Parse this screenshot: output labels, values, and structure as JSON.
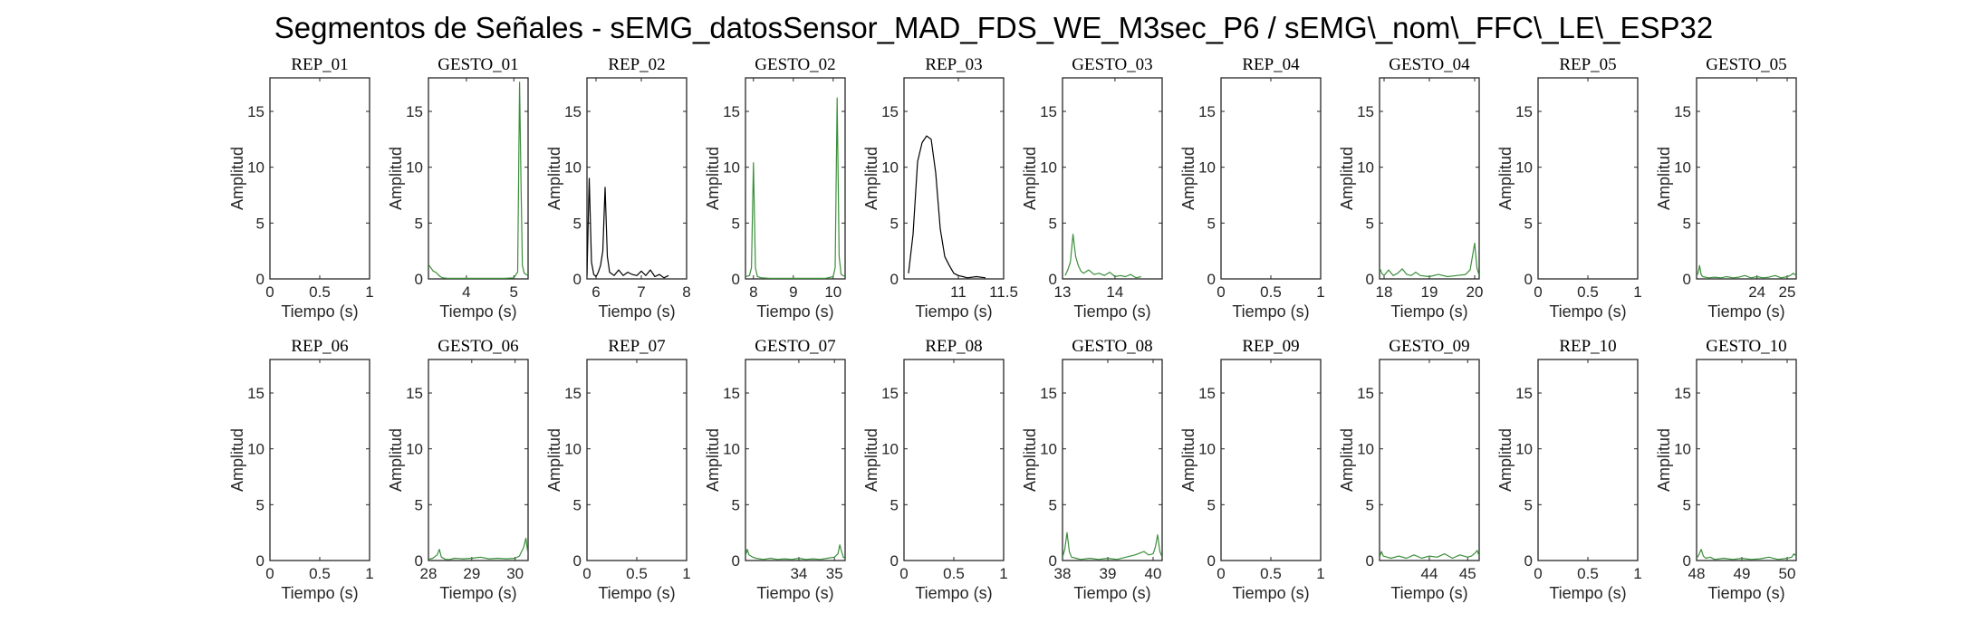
{
  "figure": {
    "title": "Segmentos de Señales - sEMG_datosSensor_MAD_FDS_WE_M3sec_P6 / sEMG\\_nom\\_FFC\\_LE\\_ESP32"
  },
  "colors": {
    "rep_line": "#000000",
    "gesto_line": "#3a8f3a",
    "frame": "#262626"
  },
  "chart_data": [
    {
      "type": "line",
      "title": "REP_01",
      "xlabel": "Tiempo (s)",
      "ylabel": "Amplitud",
      "xlim": [
        0,
        1
      ],
      "ylim": [
        0,
        18
      ],
      "xticks": [
        0,
        0.5,
        1
      ],
      "xtick_labels": [
        "0",
        "0.5",
        "1"
      ],
      "yticks": [
        0,
        5,
        10,
        15
      ],
      "ytick_labels": [
        "0",
        "5",
        "10",
        "15"
      ],
      "color": "#000000",
      "x": [],
      "y": []
    },
    {
      "type": "line",
      "title": "GESTO_01",
      "xlabel": "Tiempo (s)",
      "ylabel": "Amplitud",
      "xlim": [
        3.2,
        5.3
      ],
      "ylim": [
        0,
        18
      ],
      "xticks": [
        4,
        5
      ],
      "xtick_labels": [
        "4",
        "5"
      ],
      "yticks": [
        0,
        5,
        10,
        15
      ],
      "ytick_labels": [
        "0",
        "5",
        "10",
        "15"
      ],
      "color": "#3a8f3a",
      "x": [
        3.2,
        3.25,
        3.3,
        3.35,
        3.4,
        3.45,
        3.5,
        3.6,
        3.8,
        4.0,
        4.2,
        4.4,
        4.6,
        4.8,
        5.0,
        5.08,
        5.12,
        5.15,
        5.18,
        5.22,
        5.26,
        5.3
      ],
      "y": [
        1.3,
        1.0,
        0.7,
        0.6,
        0.4,
        0.2,
        0.1,
        0.05,
        0.05,
        0.05,
        0.05,
        0.05,
        0.05,
        0.05,
        0.1,
        0.6,
        17.6,
        9.0,
        1.2,
        0.5,
        0.4,
        0.3
      ]
    },
    {
      "type": "line",
      "title": "REP_02",
      "xlabel": "Tiempo (s)",
      "ylabel": "Amplitud",
      "xlim": [
        5.8,
        8
      ],
      "ylim": [
        0,
        18
      ],
      "xticks": [
        6,
        7,
        8
      ],
      "xtick_labels": [
        "6",
        "7",
        "8"
      ],
      "yticks": [
        0,
        5,
        10,
        15
      ],
      "ytick_labels": [
        "0",
        "5",
        "10",
        "15"
      ],
      "color": "#000000",
      "x": [
        5.8,
        5.85,
        5.9,
        5.95,
        6.0,
        6.05,
        6.1,
        6.15,
        6.2,
        6.25,
        6.3,
        6.4,
        6.5,
        6.6,
        6.7,
        6.8,
        6.9,
        7.0,
        7.1,
        7.2,
        7.3,
        7.4,
        7.5,
        7.6
      ],
      "y": [
        0.3,
        9.0,
        1.5,
        0.4,
        0.2,
        0.6,
        1.2,
        2.5,
        8.2,
        2.0,
        0.6,
        0.3,
        0.8,
        0.3,
        0.6,
        0.4,
        0.3,
        0.7,
        0.3,
        0.8,
        0.2,
        0.4,
        0.1,
        0.3
      ]
    },
    {
      "type": "line",
      "title": "GESTO_02",
      "xlabel": "Tiempo (s)",
      "ylabel": "Amplitud",
      "xlim": [
        7.8,
        10.3
      ],
      "ylim": [
        0,
        18
      ],
      "xticks": [
        8,
        9,
        10
      ],
      "xtick_labels": [
        "8",
        "9",
        "10"
      ],
      "yticks": [
        0,
        5,
        10,
        15
      ],
      "ytick_labels": [
        "0",
        "5",
        "10",
        "15"
      ],
      "color": "#3a8f3a",
      "x": [
        7.8,
        7.9,
        7.95,
        8.0,
        8.05,
        8.1,
        8.2,
        8.4,
        8.6,
        8.8,
        9.0,
        9.2,
        9.4,
        9.6,
        9.8,
        10.0,
        10.05,
        10.1,
        10.15,
        10.2,
        10.3
      ],
      "y": [
        0.2,
        0.3,
        1.0,
        10.4,
        1.0,
        0.2,
        0.1,
        0.05,
        0.05,
        0.05,
        0.05,
        0.05,
        0.05,
        0.05,
        0.05,
        0.2,
        1.0,
        16.2,
        2.0,
        0.4,
        0.2
      ]
    },
    {
      "type": "line",
      "title": "REP_03",
      "xlabel": "Tiempo (s)",
      "ylabel": "Amplitud",
      "xlim": [
        10.4,
        11.5
      ],
      "ylim": [
        0,
        18
      ],
      "xticks": [
        11,
        11.5
      ],
      "xtick_labels": [
        "11",
        "11.5"
      ],
      "yticks": [
        0,
        5,
        10,
        15
      ],
      "ytick_labels": [
        "0",
        "5",
        "10",
        "15"
      ],
      "color": "#000000",
      "x": [
        10.45,
        10.5,
        10.55,
        10.6,
        10.65,
        10.7,
        10.75,
        10.8,
        10.85,
        10.9,
        10.95,
        11.0,
        11.05,
        11.1,
        11.2,
        11.3
      ],
      "y": [
        0.5,
        4.0,
        10.5,
        12.2,
        12.8,
        12.5,
        9.5,
        4.5,
        2.0,
        1.2,
        0.5,
        0.3,
        0.2,
        0.1,
        0.2,
        0.1
      ]
    },
    {
      "type": "line",
      "title": "GESTO_03",
      "xlabel": "Tiempo (s)",
      "ylabel": "Amplitud",
      "xlim": [
        13,
        14.9
      ],
      "ylim": [
        0,
        18
      ],
      "xticks": [
        13,
        14
      ],
      "xtick_labels": [
        "13",
        "14"
      ],
      "yticks": [
        0,
        5,
        10,
        15
      ],
      "ytick_labels": [
        "0",
        "5",
        "10",
        "15"
      ],
      "color": "#3a8f3a",
      "x": [
        13.05,
        13.1,
        13.15,
        13.2,
        13.25,
        13.3,
        13.35,
        13.4,
        13.5,
        13.6,
        13.7,
        13.8,
        13.9,
        14.0,
        14.1,
        14.2,
        14.3,
        14.4,
        14.5
      ],
      "y": [
        0.3,
        0.8,
        1.5,
        4.0,
        2.0,
        1.2,
        0.7,
        0.5,
        0.8,
        0.4,
        0.5,
        0.3,
        0.6,
        0.2,
        0.3,
        0.2,
        0.4,
        0.1,
        0.2
      ]
    },
    {
      "type": "line",
      "title": "REP_04",
      "xlabel": "Tiempo (s)",
      "ylabel": "Amplitud",
      "xlim": [
        0,
        1
      ],
      "ylim": [
        0,
        18
      ],
      "xticks": [
        0,
        0.5,
        1
      ],
      "xtick_labels": [
        "0",
        "0.5",
        "1"
      ],
      "yticks": [
        0,
        5,
        10,
        15
      ],
      "ytick_labels": [
        "0",
        "5",
        "10",
        "15"
      ],
      "color": "#000000",
      "x": [],
      "y": []
    },
    {
      "type": "line",
      "title": "GESTO_04",
      "xlabel": "Tiempo (s)",
      "ylabel": "Amplitud",
      "xlim": [
        17.9,
        20.1
      ],
      "ylim": [
        0,
        18
      ],
      "xticks": [
        18,
        19,
        20
      ],
      "xtick_labels": [
        "18",
        "19",
        "20"
      ],
      "yticks": [
        0,
        5,
        10,
        15
      ],
      "ytick_labels": [
        "0",
        "5",
        "10",
        "15"
      ],
      "color": "#3a8f3a",
      "x": [
        17.9,
        17.95,
        18.0,
        18.1,
        18.2,
        18.3,
        18.4,
        18.5,
        18.6,
        18.7,
        18.8,
        19.0,
        19.2,
        19.4,
        19.6,
        19.8,
        19.9,
        19.95,
        20.0,
        20.05,
        20.1
      ],
      "y": [
        1.0,
        0.5,
        0.3,
        0.8,
        0.3,
        0.5,
        0.9,
        0.4,
        0.3,
        0.6,
        0.3,
        0.2,
        0.4,
        0.2,
        0.3,
        0.4,
        0.8,
        2.0,
        3.2,
        1.0,
        0.3
      ]
    },
    {
      "type": "line",
      "title": "REP_05",
      "xlabel": "Tiempo (s)",
      "ylabel": "Amplitud",
      "xlim": [
        0,
        1
      ],
      "ylim": [
        0,
        18
      ],
      "xticks": [
        0,
        0.5,
        1
      ],
      "xtick_labels": [
        "0",
        "0.5",
        "1"
      ],
      "yticks": [
        0,
        5,
        10,
        15
      ],
      "ytick_labels": [
        "0",
        "5",
        "10",
        "15"
      ],
      "color": "#000000",
      "x": [],
      "y": []
    },
    {
      "type": "line",
      "title": "GESTO_05",
      "xlabel": "Tiempo (s)",
      "ylabel": "Amplitud",
      "xlim": [
        22,
        25.3
      ],
      "ylim": [
        0,
        18
      ],
      "xticks": [
        24,
        25
      ],
      "xtick_labels": [
        "24",
        "25"
      ],
      "yticks": [
        0,
        5,
        10,
        15
      ],
      "ytick_labels": [
        "0",
        "5",
        "10",
        "15"
      ],
      "color": "#3a8f3a",
      "x": [
        22.0,
        22.05,
        22.1,
        22.15,
        22.2,
        22.4,
        22.6,
        22.8,
        23.0,
        23.2,
        23.4,
        23.6,
        23.8,
        24.0,
        24.2,
        24.4,
        24.6,
        24.8,
        25.0,
        25.1,
        25.2,
        25.3
      ],
      "y": [
        0.3,
        0.5,
        1.2,
        0.4,
        0.2,
        0.1,
        0.15,
        0.1,
        0.2,
        0.1,
        0.15,
        0.3,
        0.1,
        0.2,
        0.1,
        0.15,
        0.3,
        0.1,
        0.2,
        0.3,
        0.5,
        0.3
      ]
    },
    {
      "type": "line",
      "title": "REP_06",
      "xlabel": "Tiempo (s)",
      "ylabel": "Amplitud",
      "xlim": [
        0,
        1
      ],
      "ylim": [
        0,
        18
      ],
      "xticks": [
        0,
        0.5,
        1
      ],
      "xtick_labels": [
        "0",
        "0.5",
        "1"
      ],
      "yticks": [
        0,
        5,
        10,
        15
      ],
      "ytick_labels": [
        "0",
        "5",
        "10",
        "15"
      ],
      "color": "#000000",
      "x": [],
      "y": []
    },
    {
      "type": "line",
      "title": "GESTO_06",
      "xlabel": "Tiempo (s)",
      "ylabel": "Amplitud",
      "xlim": [
        28,
        30.3
      ],
      "ylim": [
        0,
        18
      ],
      "xticks": [
        28,
        29,
        30
      ],
      "xtick_labels": [
        "28",
        "29",
        "30"
      ],
      "yticks": [
        0,
        5,
        10,
        15
      ],
      "ytick_labels": [
        "0",
        "5",
        "10",
        "15"
      ],
      "color": "#3a8f3a",
      "x": [
        28.0,
        28.1,
        28.2,
        28.25,
        28.3,
        28.4,
        28.5,
        28.6,
        28.8,
        29.0,
        29.2,
        29.4,
        29.6,
        29.8,
        30.0,
        30.1,
        30.2,
        30.25,
        30.3
      ],
      "y": [
        0.1,
        0.2,
        0.5,
        1.0,
        0.3,
        0.1,
        0.1,
        0.2,
        0.15,
        0.2,
        0.3,
        0.15,
        0.2,
        0.15,
        0.2,
        0.4,
        1.2,
        2.0,
        0.5
      ]
    },
    {
      "type": "line",
      "title": "REP_07",
      "xlabel": "Tiempo (s)",
      "ylabel": "Amplitud",
      "xlim": [
        0,
        1
      ],
      "ylim": [
        0,
        18
      ],
      "xticks": [
        0,
        0.5,
        1
      ],
      "xtick_labels": [
        "0",
        "0.5",
        "1"
      ],
      "yticks": [
        0,
        5,
        10,
        15
      ],
      "ytick_labels": [
        "0",
        "5",
        "10",
        "15"
      ],
      "color": "#000000",
      "x": [],
      "y": []
    },
    {
      "type": "line",
      "title": "GESTO_07",
      "xlabel": "Tiempo (s)",
      "ylabel": "Amplitud",
      "xlim": [
        32.5,
        35.3
      ],
      "ylim": [
        0,
        18
      ],
      "xticks": [
        34,
        35
      ],
      "xtick_labels": [
        "34",
        "35"
      ],
      "yticks": [
        0,
        5,
        10,
        15
      ],
      "ytick_labels": [
        "0",
        "5",
        "10",
        "15"
      ],
      "color": "#3a8f3a",
      "x": [
        32.5,
        32.55,
        32.6,
        32.7,
        32.8,
        33.0,
        33.2,
        33.4,
        33.6,
        33.8,
        34.0,
        34.2,
        34.4,
        34.6,
        34.8,
        35.0,
        35.1,
        35.15,
        35.2,
        35.25,
        35.3
      ],
      "y": [
        0.4,
        1.0,
        0.5,
        0.3,
        0.2,
        0.1,
        0.2,
        0.1,
        0.15,
        0.1,
        0.2,
        0.1,
        0.15,
        0.1,
        0.2,
        0.3,
        0.6,
        1.4,
        0.8,
        0.3,
        0.2
      ]
    },
    {
      "type": "line",
      "title": "REP_08",
      "xlabel": "Tiempo (s)",
      "ylabel": "Amplitud",
      "xlim": [
        0,
        1
      ],
      "ylim": [
        0,
        18
      ],
      "xticks": [
        0,
        0.5,
        1
      ],
      "xtick_labels": [
        "0",
        "0.5",
        "1"
      ],
      "yticks": [
        0,
        5,
        10,
        15
      ],
      "ytick_labels": [
        "0",
        "5",
        "10",
        "15"
      ],
      "color": "#000000",
      "x": [],
      "y": []
    },
    {
      "type": "line",
      "title": "GESTO_08",
      "xlabel": "Tiempo (s)",
      "ylabel": "Amplitud",
      "xlim": [
        38,
        40.2
      ],
      "ylim": [
        0,
        18
      ],
      "xticks": [
        38,
        39,
        40
      ],
      "xtick_labels": [
        "38",
        "39",
        "40"
      ],
      "yticks": [
        0,
        5,
        10,
        15
      ],
      "ytick_labels": [
        "0",
        "5",
        "10",
        "15"
      ],
      "color": "#3a8f3a",
      "x": [
        38.0,
        38.05,
        38.1,
        38.15,
        38.2,
        38.3,
        38.4,
        38.6,
        38.8,
        39.0,
        39.2,
        39.4,
        39.6,
        39.8,
        39.9,
        40.0,
        40.05,
        40.1,
        40.15,
        40.2
      ],
      "y": [
        0.3,
        1.0,
        2.5,
        0.8,
        0.3,
        0.2,
        0.1,
        0.2,
        0.1,
        0.2,
        0.1,
        0.3,
        0.5,
        0.8,
        0.5,
        0.6,
        1.2,
        2.3,
        0.8,
        0.3
      ]
    },
    {
      "type": "line",
      "title": "REP_09",
      "xlabel": "Tiempo (s)",
      "ylabel": "Amplitud",
      "xlim": [
        0,
        1
      ],
      "ylim": [
        0,
        18
      ],
      "xticks": [
        0,
        0.5,
        1
      ],
      "xtick_labels": [
        "0",
        "0.5",
        "1"
      ],
      "yticks": [
        0,
        5,
        10,
        15
      ],
      "ytick_labels": [
        "0",
        "5",
        "10",
        "15"
      ],
      "color": "#000000",
      "x": [],
      "y": []
    },
    {
      "type": "line",
      "title": "GESTO_09",
      "xlabel": "Tiempo (s)",
      "ylabel": "Amplitud",
      "xlim": [
        42.7,
        45.3
      ],
      "ylim": [
        0,
        18
      ],
      "xticks": [
        44,
        45
      ],
      "xtick_labels": [
        "44",
        "45"
      ],
      "yticks": [
        0,
        5,
        10,
        15
      ],
      "ytick_labels": [
        "0",
        "5",
        "10",
        "15"
      ],
      "color": "#3a8f3a",
      "x": [
        42.7,
        42.75,
        42.8,
        42.9,
        43.0,
        43.2,
        43.4,
        43.6,
        43.8,
        44.0,
        44.2,
        44.4,
        44.6,
        44.8,
        45.0,
        45.1,
        45.2,
        45.25,
        45.3
      ],
      "y": [
        0.3,
        0.8,
        0.4,
        0.3,
        0.2,
        0.4,
        0.2,
        0.5,
        0.2,
        0.4,
        0.3,
        0.6,
        0.2,
        0.5,
        0.3,
        0.4,
        0.7,
        0.9,
        0.4
      ]
    },
    {
      "type": "line",
      "title": "REP_10",
      "xlabel": "Tiempo (s)",
      "ylabel": "Amplitud",
      "xlim": [
        0,
        1
      ],
      "ylim": [
        0,
        18
      ],
      "xticks": [
        0,
        0.5,
        1
      ],
      "xtick_labels": [
        "0",
        "0.5",
        "1"
      ],
      "yticks": [
        0,
        5,
        10,
        15
      ],
      "ytick_labels": [
        "0",
        "5",
        "10",
        "15"
      ],
      "color": "#000000",
      "x": [],
      "y": []
    },
    {
      "type": "line",
      "title": "GESTO_10",
      "xlabel": "Tiempo (s)",
      "ylabel": "Amplitud",
      "xlim": [
        48,
        50.2
      ],
      "ylim": [
        0,
        18
      ],
      "xticks": [
        48,
        49,
        50
      ],
      "xtick_labels": [
        "48",
        "49",
        "50"
      ],
      "yticks": [
        0,
        5,
        10,
        15
      ],
      "ytick_labels": [
        "0",
        "5",
        "10",
        "15"
      ],
      "color": "#3a8f3a",
      "x": [
        48.0,
        48.05,
        48.1,
        48.15,
        48.2,
        48.3,
        48.4,
        48.6,
        48.8,
        49.0,
        49.2,
        49.4,
        49.6,
        49.8,
        50.0,
        50.1,
        50.15,
        50.2
      ],
      "y": [
        0.2,
        0.5,
        1.0,
        0.4,
        0.2,
        0.3,
        0.1,
        0.2,
        0.1,
        0.2,
        0.1,
        0.15,
        0.3,
        0.1,
        0.2,
        0.3,
        0.6,
        0.4
      ]
    }
  ]
}
